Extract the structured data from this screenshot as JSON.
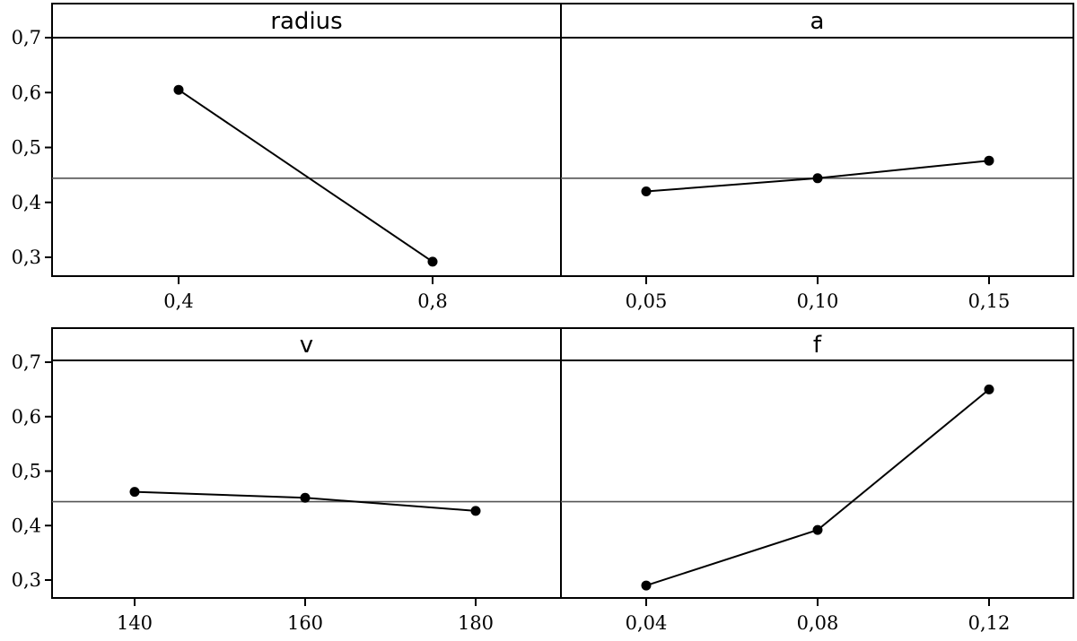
{
  "chart_data": {
    "type": "line",
    "grid": false,
    "ylim": [
      0.27,
      0.72
    ],
    "yticks": [
      0.3,
      0.4,
      0.5,
      0.6,
      0.7
    ],
    "ytick_labels": [
      "0,3",
      "0,4",
      "0,5",
      "0,6",
      "0,7"
    ],
    "mean_reference": 0.444,
    "panels": [
      {
        "title": "radius",
        "x": [
          0.4,
          0.8
        ],
        "xtick_labels": [
          "0,4",
          "0,8"
        ],
        "values": [
          0.605,
          0.292
        ]
      },
      {
        "title": "a",
        "x": [
          0.05,
          0.1,
          0.15
        ],
        "xtick_labels": [
          "0,05",
          "0,10",
          "0,15"
        ],
        "values": [
          0.42,
          0.444,
          0.476
        ]
      },
      {
        "title": "v",
        "x": [
          140,
          160,
          180
        ],
        "xtick_labels": [
          "140",
          "160",
          "180"
        ],
        "values": [
          0.462,
          0.451,
          0.427
        ]
      },
      {
        "title": "f",
        "x": [
          0.04,
          0.08,
          0.12
        ],
        "xtick_labels": [
          "0,04",
          "0,08",
          "0,12"
        ],
        "values": [
          0.29,
          0.392,
          0.65
        ]
      }
    ]
  }
}
